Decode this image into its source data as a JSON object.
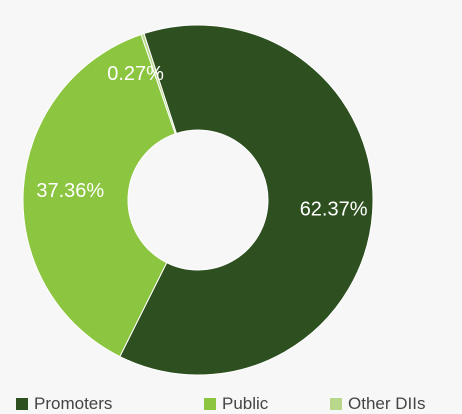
{
  "chart_data": {
    "type": "pie",
    "subtype": "donut",
    "title": "",
    "legend_position": "bottom",
    "slices": [
      {
        "name": "Promoters",
        "value": 62.37,
        "label": "62.37%",
        "color": "#2e5020"
      },
      {
        "name": "Public",
        "value": 37.36,
        "label": "37.36%",
        "color": "#8cc540"
      },
      {
        "name": "Other DIIs",
        "value": 0.27,
        "label": "0.27%",
        "color": "#b8d78a"
      }
    ]
  },
  "legend": {
    "items": [
      {
        "label": "Promoters",
        "color": "#2e5020"
      },
      {
        "label": "Public",
        "color": "#8cc540"
      },
      {
        "label": "Other DIIs",
        "color": "#b8d78a"
      }
    ]
  }
}
